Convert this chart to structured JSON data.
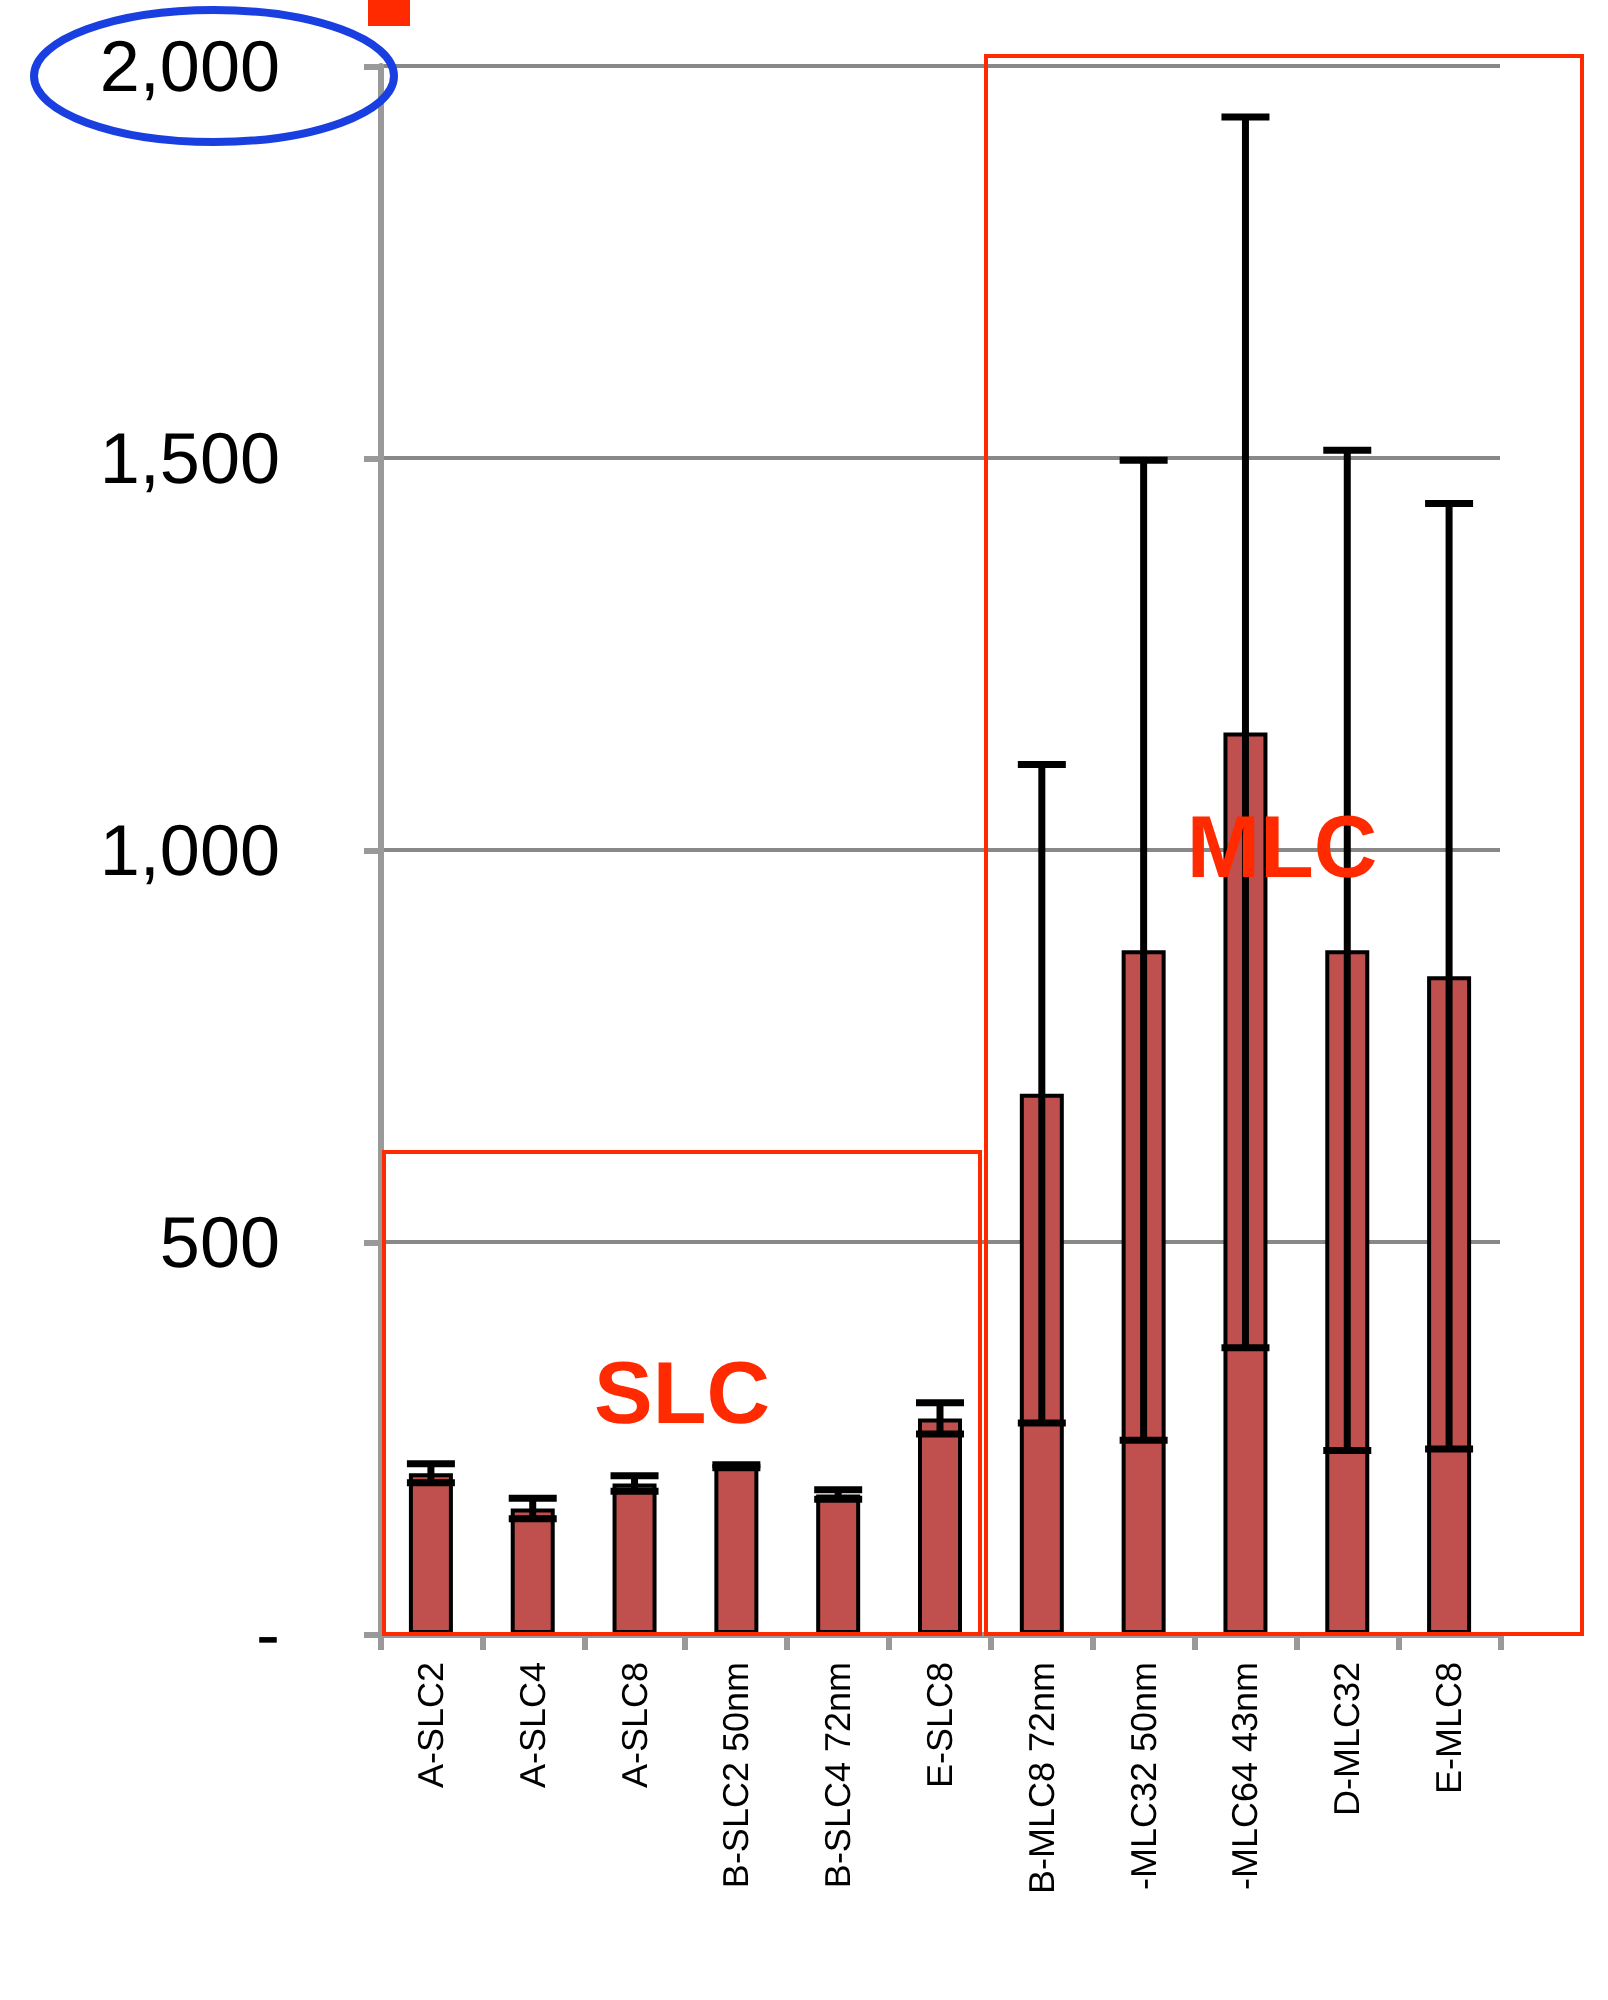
{
  "chart_data": {
    "type": "bar",
    "categories": [
      "A-SLC2",
      "A-SLC4",
      "A-SLC8",
      "B-SLC2 50nm",
      "B-SLC4 72nm",
      "E-SLC8",
      "B-MLC8 72nm",
      "-MLC32 50nm",
      "-MLC64 43nm",
      "D-MLC32",
      "E-MLC8"
    ],
    "values": [
      205,
      160,
      192,
      214,
      178,
      275,
      689,
      872,
      1150,
      872,
      839
    ],
    "errors": [
      12,
      13,
      10,
      2,
      6,
      20,
      420,
      625,
      785,
      638,
      603
    ],
    "color": "#c0504d",
    "ylim": [
      0,
      2000
    ],
    "yticks": [
      {
        "value": 0,
        "label": "-"
      },
      {
        "value": 500,
        "label": "500"
      },
      {
        "value": 1000,
        "label": "1,000"
      },
      {
        "value": 1500,
        "label": "1,500"
      },
      {
        "value": 2000,
        "label": "2,000"
      }
    ],
    "grid": "y",
    "annotations": [
      "SLC",
      "MLC"
    ]
  }
}
